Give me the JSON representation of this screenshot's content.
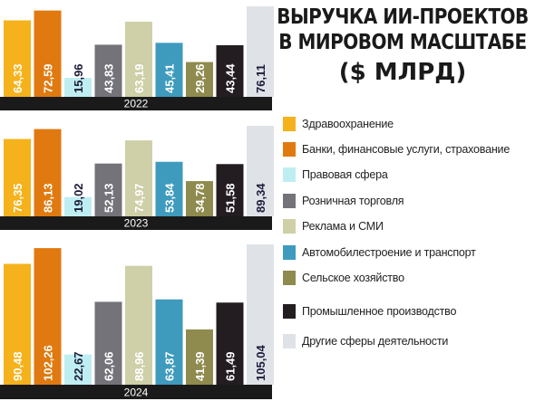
{
  "title": {
    "line1": "ВЫРУЧКА ИИ-ПРОЕКТОВ",
    "line2": "В МИРОВОМ МАСШТАБЕ",
    "line3": "($ МЛРД)"
  },
  "colors": {
    "Здравоохранение": "#f5b21c",
    "Банки, финансовые услуги, страхование": "#e07a10",
    "Правовая сфера": "#bfeef2",
    "Розничная торговля": "#74737a",
    "Реклама и СМИ": "#cfcfa8",
    "Автомобилестроение и транспорт": "#3e9bbd",
    "Сельское хозяйство": "#8f8a4e",
    "Промышленное производство": "#231d21",
    "Другие сферы деятельности": "#dfe2e7"
  },
  "chart_data": [
    {
      "type": "bar",
      "xlabel": "2022",
      "categories": [
        "Здравоохранение",
        "Банки, финансовые услуги, страхование",
        "Правовая сфера",
        "Розничная торговля",
        "Реклама и СМИ",
        "Автомобилестроение и транспорт",
        "Сельское хозяйство",
        "Промышленное производство",
        "Другие сферы деятельности"
      ],
      "values": [
        64.33,
        72.59,
        15.96,
        43.83,
        63.19,
        45.41,
        29.26,
        43.44,
        76.11
      ],
      "labels": [
        "64,33",
        "72,59",
        "15,96",
        "43,83",
        "63,19",
        "45,41",
        "29,26",
        "43,44",
        "76,11"
      ]
    },
    {
      "type": "bar",
      "xlabel": "2023",
      "categories": [
        "Здравоохранение",
        "Банки, финансовые услуги, страхование",
        "Правовая сфера",
        "Розничная торговля",
        "Реклама и СМИ",
        "Автомобилестроение и транспорт",
        "Сельское хозяйство",
        "Промышленное производство",
        "Другие сферы деятельности"
      ],
      "values": [
        76.35,
        86.13,
        19.02,
        52.13,
        74.97,
        53.84,
        34.78,
        51.58,
        89.34
      ],
      "labels": [
        "76,35",
        "86,13",
        "19,02",
        "52,13",
        "74,97",
        "53,84",
        "34,78",
        "51,58",
        "89,34"
      ]
    },
    {
      "type": "bar",
      "xlabel": "2024",
      "categories": [
        "Здравоохранение",
        "Банки, финансовые услуги, страхование",
        "Правовая сфера",
        "Розничная торговля",
        "Реклама и СМИ",
        "Автомобилестроение и транспорт",
        "Сельское хозяйство",
        "Промышленное производство",
        "Другие сферы деятельности"
      ],
      "values": [
        90.48,
        102.26,
        22.67,
        62.06,
        88.96,
        63.87,
        41.39,
        61.49,
        105.04
      ],
      "labels": [
        "90,48",
        "102,26",
        "22,67",
        "62,06",
        "88,96",
        "63,87",
        "41,39",
        "61,49",
        "105,04"
      ]
    }
  ],
  "legend": [
    "Здравоохранение",
    "Банки, финансовые услуги, страхование",
    "Правовая сфера",
    "Розничная торговля",
    "Реклама и СМИ",
    "Автомобилестроение и транспорт",
    "Сельское хозяйство",
    "Промышленное производство",
    "Другие сферы деятельности"
  ]
}
